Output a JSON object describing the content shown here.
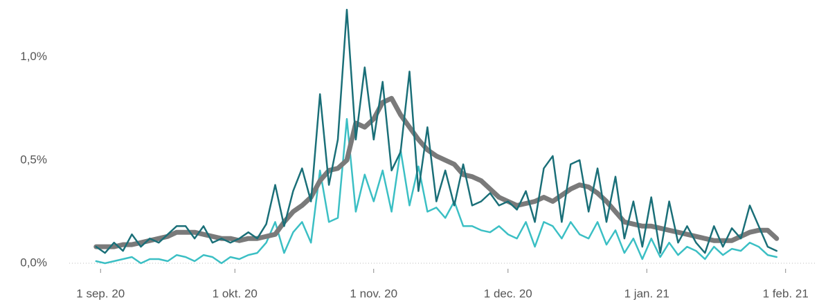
{
  "chart_data": {
    "type": "line",
    "x": [
      -1,
      1,
      3,
      5,
      7,
      9,
      11,
      13,
      15,
      17,
      19,
      21,
      23,
      25,
      27,
      29,
      31,
      33,
      35,
      37,
      39,
      41,
      43,
      45,
      47,
      49,
      51,
      53,
      55,
      57,
      59,
      61,
      63,
      65,
      67,
      69,
      71,
      73,
      75,
      77,
      79,
      81,
      83,
      85,
      87,
      89,
      91,
      93,
      95,
      97,
      99,
      101,
      103,
      105,
      107,
      109,
      111,
      113,
      115,
      117,
      119,
      121,
      123,
      125,
      127,
      129,
      131,
      133,
      135,
      137,
      139,
      141,
      143,
      145,
      147,
      149,
      151
    ],
    "series": [
      {
        "color": "#3bbfc4",
        "width": 2.5,
        "values": [
          0.01,
          0.0,
          0.01,
          0.02,
          0.03,
          0.0,
          0.02,
          0.02,
          0.01,
          0.04,
          0.03,
          0.01,
          0.04,
          0.03,
          0.0,
          0.03,
          0.02,
          0.04,
          0.05,
          0.1,
          0.2,
          0.05,
          0.15,
          0.2,
          0.1,
          0.45,
          0.2,
          0.22,
          0.7,
          0.25,
          0.43,
          0.3,
          0.45,
          0.25,
          0.55,
          0.28,
          0.47,
          0.25,
          0.27,
          0.22,
          0.3,
          0.18,
          0.18,
          0.16,
          0.15,
          0.18,
          0.14,
          0.12,
          0.2,
          0.08,
          0.2,
          0.18,
          0.12,
          0.2,
          0.14,
          0.12,
          0.2,
          0.09,
          0.16,
          0.05,
          0.12,
          0.02,
          0.12,
          0.03,
          0.1,
          0.04,
          0.08,
          0.06,
          0.02,
          0.08,
          0.04,
          0.07,
          0.06,
          0.1,
          0.08,
          0.04,
          0.03
        ]
      },
      {
        "color": "#7a7a7a",
        "width": 7,
        "values": [
          0.08,
          0.08,
          0.08,
          0.09,
          0.09,
          0.1,
          0.11,
          0.12,
          0.13,
          0.15,
          0.15,
          0.15,
          0.14,
          0.13,
          0.12,
          0.12,
          0.11,
          0.12,
          0.12,
          0.13,
          0.14,
          0.2,
          0.25,
          0.28,
          0.32,
          0.4,
          0.45,
          0.46,
          0.5,
          0.68,
          0.66,
          0.7,
          0.78,
          0.8,
          0.72,
          0.66,
          0.6,
          0.55,
          0.52,
          0.5,
          0.48,
          0.43,
          0.42,
          0.4,
          0.36,
          0.32,
          0.3,
          0.28,
          0.29,
          0.3,
          0.32,
          0.3,
          0.33,
          0.36,
          0.38,
          0.37,
          0.34,
          0.3,
          0.25,
          0.2,
          0.19,
          0.18,
          0.18,
          0.17,
          0.16,
          0.15,
          0.14,
          0.13,
          0.12,
          0.11,
          0.11,
          0.11,
          0.13,
          0.15,
          0.16,
          0.16,
          0.12
        ]
      },
      {
        "color": "#1a6f78",
        "width": 2.5,
        "values": [
          0.08,
          0.05,
          0.1,
          0.06,
          0.14,
          0.08,
          0.12,
          0.1,
          0.14,
          0.18,
          0.18,
          0.12,
          0.18,
          0.1,
          0.12,
          0.1,
          0.12,
          0.15,
          0.12,
          0.19,
          0.38,
          0.18,
          0.35,
          0.46,
          0.3,
          0.82,
          0.38,
          0.6,
          1.23,
          0.6,
          0.95,
          0.6,
          0.88,
          0.45,
          0.54,
          0.93,
          0.35,
          0.66,
          0.3,
          0.45,
          0.28,
          0.48,
          0.28,
          0.3,
          0.34,
          0.28,
          0.3,
          0.26,
          0.35,
          0.2,
          0.46,
          0.52,
          0.2,
          0.48,
          0.5,
          0.25,
          0.46,
          0.2,
          0.42,
          0.12,
          0.3,
          0.08,
          0.32,
          0.05,
          0.3,
          0.1,
          0.18,
          0.1,
          0.05,
          0.18,
          0.08,
          0.17,
          0.12,
          0.28,
          0.18,
          0.08,
          0.06
        ]
      }
    ],
    "xlim": [
      -7,
      160
    ],
    "xticks": [
      {
        "value": 0,
        "label": "1 sep. 20"
      },
      {
        "value": 30,
        "label": "1 okt. 20"
      },
      {
        "value": 61,
        "label": "1 nov. 20"
      },
      {
        "value": 91,
        "label": "1 dec. 20"
      },
      {
        "value": 122,
        "label": "1 jan. 21"
      },
      {
        "value": 153,
        "label": "1 feb. 21"
      }
    ],
    "ylim": [
      0,
      1.25
    ],
    "yticks": [
      {
        "value": 0,
        "label": "0,0%"
      },
      {
        "value": 0.5,
        "label": "0,5%"
      },
      {
        "value": 1,
        "label": "1,0%"
      }
    ]
  }
}
